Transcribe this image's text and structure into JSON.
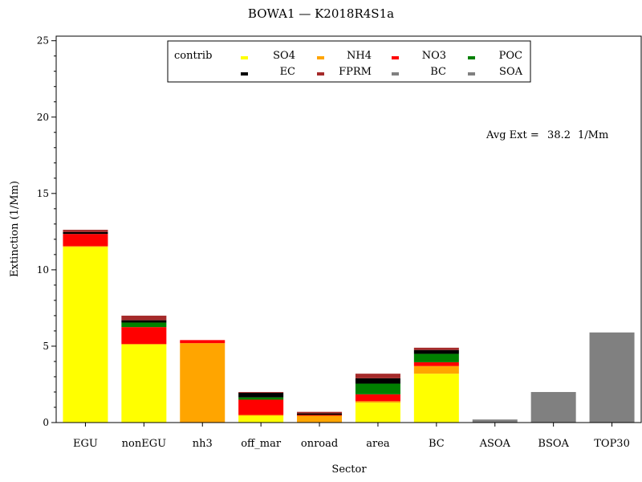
{
  "chart_data": {
    "type": "bar",
    "stacked": true,
    "title": "BOWA1 — K2018R4S1a",
    "xlabel": "Sector",
    "ylabel": "Extinction (1/Mm)",
    "ylim": [
      0,
      25.3
    ],
    "yticks": [
      0,
      5,
      10,
      15,
      20,
      25
    ],
    "grid": false,
    "legend_position": "top-center",
    "legend_title": "contrib",
    "annotation": {
      "label": "Avg Ext =",
      "value": "38.2",
      "unit": "1/Mm"
    },
    "categories": [
      "EGU",
      "nonEGU",
      "nh3",
      "off_mar",
      "onroad",
      "area",
      "BC",
      "ASOA",
      "BSOA",
      "TOP30"
    ],
    "series": [
      {
        "name": "SO4",
        "color": "#ffff00",
        "values": [
          11.5,
          5.1,
          0,
          0.45,
          0,
          1.3,
          3.2,
          0,
          0,
          0
        ]
      },
      {
        "name": "NH4",
        "color": "#ffa500",
        "values": [
          0.05,
          0.05,
          5.2,
          0.05,
          0.45,
          0.1,
          0.5,
          0,
          0,
          0
        ]
      },
      {
        "name": "NO3",
        "color": "#ff0000",
        "values": [
          0.8,
          1.1,
          0.2,
          1.0,
          0.05,
          0.45,
          0.25,
          0,
          0,
          0
        ]
      },
      {
        "name": "POC",
        "color": "#008000",
        "values": [
          0,
          0.3,
          0,
          0.15,
          0,
          0.7,
          0.55,
          0,
          0,
          0
        ]
      },
      {
        "name": "EC",
        "color": "#000000",
        "values": [
          0.12,
          0.15,
          0,
          0.3,
          0.1,
          0.35,
          0.25,
          0,
          0,
          0
        ]
      },
      {
        "name": "FPRM",
        "color": "#a52a2a",
        "values": [
          0.15,
          0.3,
          0,
          0.05,
          0.1,
          0.3,
          0.15,
          0,
          0,
          0
        ]
      },
      {
        "name": "BC",
        "color": "#808080",
        "values": [
          0,
          0,
          0,
          0,
          0,
          0,
          0,
          0,
          0,
          0
        ]
      },
      {
        "name": "SOA",
        "color": "#808080",
        "values": [
          0,
          0,
          0,
          0,
          0,
          0,
          0,
          0.2,
          2.0,
          5.9
        ]
      }
    ]
  }
}
